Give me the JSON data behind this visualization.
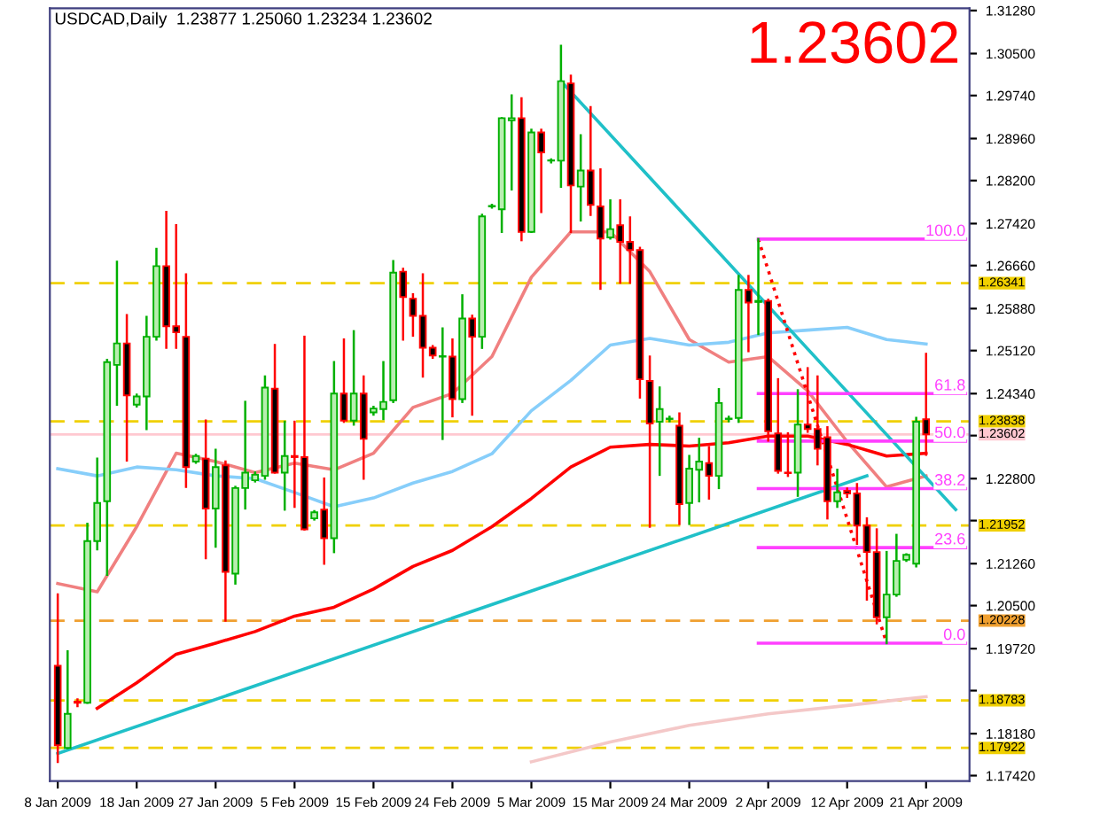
{
  "chart_data": {
    "type": "candlestick",
    "title": "USDCAD,Daily  1.23877 1.25060 1.23234 1.23602",
    "annotations": [
      "1.23602"
    ],
    "categories": [
      "8 Jan 2009",
      null,
      null,
      null,
      null,
      null,
      null,
      null,
      "18 Jan 2009",
      null,
      null,
      null,
      null,
      null,
      null,
      null,
      "27 Jan 2009",
      null,
      null,
      null,
      null,
      null,
      null,
      null,
      "5 Feb 2009",
      null,
      null,
      null,
      null,
      null,
      null,
      null,
      "15 Feb 2009",
      null,
      null,
      null,
      null,
      null,
      null,
      null,
      "24 Feb 2009",
      null,
      null,
      null,
      null,
      null,
      null,
      null,
      "5 Mar 2009",
      null,
      null,
      null,
      null,
      null,
      null,
      null,
      "15 Mar 2009",
      null,
      null,
      null,
      null,
      null,
      null,
      null,
      "24 Mar 2009",
      null,
      null,
      null,
      null,
      null,
      null,
      null,
      "2 Apr 2009",
      null,
      null,
      null,
      null,
      null,
      null,
      null,
      "12 Apr 2009",
      null,
      null,
      null,
      null,
      null,
      null,
      null,
      "21 Apr 2009",
      null,
      null,
      null,
      null
    ],
    "ohlc": [
      [
        1.1941,
        1.207,
        1.1767,
        1.1797
      ],
      [
        1.1792,
        1.1967,
        1.1792,
        1.1854
      ],
      [
        1.1876,
        1.188,
        1.1868,
        1.1874
      ],
      [
        1.1874,
        1.2198,
        1.1874,
        1.2167
      ],
      [
        1.2167,
        1.2316,
        1.2152,
        1.2236
      ],
      [
        1.2239,
        1.2495,
        1.2106,
        1.2491
      ],
      [
        1.2486,
        1.2673,
        1.2414,
        1.2525
      ],
      [
        1.2525,
        1.2576,
        1.2313,
        1.2431
      ],
      [
        1.2414,
        1.2432,
        1.2411,
        1.2429
      ],
      [
        1.2429,
        1.2573,
        1.237,
        1.2537
      ],
      [
        1.2537,
        1.2696,
        1.2532,
        1.2665
      ],
      [
        1.2665,
        1.2763,
        1.2517,
        1.2556
      ],
      [
        1.2556,
        1.2739,
        1.2517,
        1.2545
      ],
      [
        1.2537,
        1.265,
        1.2265,
        1.2301
      ],
      [
        1.2311,
        1.2323,
        1.2309,
        1.2321
      ],
      [
        1.2316,
        1.2385,
        1.2136,
        1.2226
      ],
      [
        1.2226,
        1.2332,
        1.2157,
        1.2301
      ],
      [
        1.2304,
        1.2311,
        1.2023,
        1.2111
      ],
      [
        1.2108,
        1.2265,
        1.209,
        1.2263
      ],
      [
        1.2263,
        1.2419,
        1.2226,
        1.2291
      ],
      [
        1.2277,
        1.2291,
        1.2275,
        1.2287
      ],
      [
        1.2285,
        1.2465,
        1.228,
        1.2445
      ],
      [
        1.2443,
        1.2522,
        1.2291,
        1.2291
      ],
      [
        1.2291,
        1.2383,
        1.2224,
        1.2321
      ],
      [
        1.2321,
        1.2383,
        1.2229,
        1.2319
      ],
      [
        1.2319,
        1.2537,
        1.2188,
        1.2188
      ],
      [
        1.2208,
        1.2221,
        1.2206,
        1.2219
      ],
      [
        1.2224,
        1.228,
        1.2126,
        1.2172
      ],
      [
        1.2172,
        1.2491,
        1.2147,
        1.2434
      ],
      [
        1.2434,
        1.2532,
        1.2383,
        1.2385
      ],
      [
        1.2385,
        1.2547,
        1.2378,
        1.2434
      ],
      [
        1.2434,
        1.2465,
        1.228,
        1.2352
      ],
      [
        1.24,
        1.241,
        1.2396,
        1.2407
      ],
      [
        1.2406,
        1.2491,
        1.2388,
        1.2419
      ],
      [
        1.2422,
        1.2674,
        1.2419,
        1.2653
      ],
      [
        1.2655,
        1.266,
        1.2532,
        1.2609
      ],
      [
        1.2606,
        1.2614,
        1.2539,
        1.2575
      ],
      [
        1.2575,
        1.265,
        1.2465,
        1.2517
      ],
      [
        1.2517,
        1.252,
        1.2499,
        1.2503
      ],
      [
        1.2501,
        1.2552,
        1.2352,
        1.2501
      ],
      [
        1.2501,
        1.2532,
        1.2393,
        1.2424
      ],
      [
        1.2424,
        1.2612,
        1.2419,
        1.257
      ],
      [
        1.257,
        1.2575,
        1.2396,
        1.2537
      ],
      [
        1.2537,
        1.2758,
        1.2517,
        1.2755
      ],
      [
        1.2773,
        1.2776,
        1.2771,
        1.2773
      ],
      [
        1.2768,
        1.2933,
        1.2727,
        1.2933
      ],
      [
        1.2929,
        1.2974,
        1.2804,
        1.2933
      ],
      [
        1.2933,
        1.2969,
        1.2712,
        1.2727
      ],
      [
        1.2727,
        1.2912,
        1.2727,
        1.2907
      ],
      [
        1.2907,
        1.2912,
        1.2763,
        1.2871
      ],
      [
        1.2856,
        1.2858,
        1.2853,
        1.2856
      ],
      [
        1.2856,
        1.3064,
        1.2809,
        1.3
      ],
      [
        1.2996,
        1.301,
        1.2727,
        1.2811
      ],
      [
        1.2809,
        1.2902,
        1.2748,
        1.2838
      ],
      [
        1.2838,
        1.2953,
        1.2758,
        1.2776
      ],
      [
        1.2773,
        1.284,
        1.2624,
        1.2715
      ],
      [
        1.2717,
        1.2784,
        1.2715,
        1.2732
      ],
      [
        1.2739,
        1.2784,
        1.2635,
        1.2709
      ],
      [
        1.2709,
        1.2753,
        1.2635,
        1.2694
      ],
      [
        1.2694,
        1.2698,
        1.2427,
        1.246
      ],
      [
        1.2457,
        1.2501,
        1.2193,
        1.238
      ],
      [
        1.2383,
        1.2445,
        1.2287,
        1.2406
      ],
      [
        1.2388,
        1.2392,
        1.2384,
        1.2388
      ],
      [
        1.2376,
        1.2398,
        1.2198,
        1.2234
      ],
      [
        1.2236,
        1.2321,
        1.2198,
        1.2298
      ],
      [
        1.2296,
        1.2352,
        1.2239,
        1.2311
      ],
      [
        1.2308,
        1.2337,
        1.2244,
        1.2285
      ],
      [
        1.2285,
        1.2442,
        1.2263,
        1.2417
      ],
      [
        1.2388,
        1.2392,
        1.2384,
        1.2388
      ],
      [
        1.239,
        1.2647,
        1.2383,
        1.2622
      ],
      [
        1.2622,
        1.2647,
        1.2511,
        1.2599
      ],
      [
        1.26,
        1.2714,
        1.2542,
        1.2602
      ],
      [
        1.2602,
        1.2604,
        1.2349,
        1.2366
      ],
      [
        1.2362,
        1.246,
        1.2291,
        1.2294
      ],
      [
        1.2291,
        1.2362,
        1.2285,
        1.229
      ],
      [
        1.2291,
        1.244,
        1.2249,
        1.2378
      ],
      [
        1.2378,
        1.248,
        1.2365,
        1.237
      ],
      [
        1.237,
        1.2465,
        1.2306,
        1.2334
      ],
      [
        1.2355,
        1.2373,
        1.2208,
        1.2239
      ],
      [
        1.2239,
        1.2296,
        1.2229,
        1.2255
      ],
      [
        1.2258,
        1.2262,
        1.2247,
        1.2253
      ],
      [
        1.2253,
        1.227,
        1.2162,
        1.2195
      ],
      [
        1.2195,
        1.2208,
        1.2061,
        1.2147
      ],
      [
        1.2147,
        1.2188,
        1.2018,
        1.2029
      ],
      [
        1.2029,
        1.2147,
        1.1982,
        1.207
      ],
      [
        1.207,
        1.2178,
        1.2068,
        1.2131
      ],
      [
        1.2133,
        1.2143,
        1.2131,
        1.2142
      ],
      [
        1.2126,
        1.239,
        1.2121,
        1.2383
      ],
      [
        1.23877,
        1.2506,
        1.23234,
        1.23602
      ],
      null,
      null,
      null,
      null
    ],
    "series": [
      {
        "type": "line",
        "color": "#f08080",
        "values": [
          1.209,
          null,
          null,
          null,
          1.2075,
          null,
          null,
          null,
          1.2193,
          null,
          null,
          null,
          1.2326,
          null,
          null,
          null,
          1.2311,
          null,
          null,
          null,
          1.2291,
          null,
          null,
          null,
          1.2308,
          null,
          null,
          null,
          1.2296,
          null,
          null,
          null,
          1.2326,
          null,
          null,
          null,
          1.2409,
          null,
          null,
          null,
          1.2434,
          null,
          null,
          null,
          1.2501,
          null,
          null,
          null,
          1.2645,
          null,
          null,
          null,
          1.2727,
          null,
          null,
          null,
          1.2727,
          null,
          null,
          null,
          1.2655,
          null,
          null,
          null,
          1.2532,
          null,
          null,
          null,
          1.2491,
          null,
          null,
          null,
          1.2501,
          null,
          null,
          null,
          1.2439,
          null,
          null,
          null,
          1.2347,
          null,
          null,
          null,
          1.2265,
          null,
          null,
          null,
          1.2285,
          null,
          null,
          null,
          null
        ]
      },
      {
        "type": "line",
        "color": "#87cefa",
        "values": [
          1.2298,
          null,
          null,
          null,
          1.2285,
          null,
          null,
          null,
          1.2301,
          null,
          null,
          null,
          1.2296,
          null,
          null,
          null,
          1.2285,
          null,
          null,
          null,
          1.228,
          null,
          null,
          null,
          1.2255,
          null,
          null,
          null,
          1.2229,
          null,
          null,
          null,
          1.2245,
          null,
          null,
          null,
          1.2272,
          null,
          null,
          null,
          1.2293,
          null,
          null,
          null,
          1.2325,
          null,
          null,
          null,
          1.2403,
          null,
          null,
          null,
          1.2458,
          null,
          null,
          null,
          1.2522,
          null,
          null,
          null,
          1.2534,
          null,
          null,
          null,
          1.2522,
          null,
          null,
          null,
          1.2527,
          null,
          null,
          null,
          1.2544,
          null,
          null,
          null,
          1.2549,
          null,
          null,
          null,
          1.2554,
          null,
          null,
          null,
          1.2532,
          null,
          null,
          null,
          1.2524,
          null,
          null,
          null,
          null
        ]
      },
      {
        "type": "line",
        "color": "#ff0000",
        "values": [
          null,
          null,
          null,
          null,
          1.1864,
          null,
          null,
          null,
          1.191,
          null,
          null,
          null,
          1.1962,
          null,
          null,
          null,
          1.1982,
          null,
          null,
          null,
          1.2003,
          null,
          null,
          null,
          1.2031,
          null,
          null,
          null,
          1.2047,
          null,
          null,
          null,
          1.208,
          null,
          null,
          null,
          1.2121,
          null,
          null,
          null,
          1.215,
          null,
          null,
          null,
          1.2193,
          null,
          null,
          null,
          1.2244,
          null,
          null,
          null,
          1.2301,
          null,
          null,
          null,
          1.2337,
          null,
          null,
          null,
          1.2342,
          null,
          null,
          null,
          1.2339,
          null,
          null,
          null,
          1.2345,
          null,
          null,
          null,
          1.2357,
          null,
          null,
          null,
          1.2357,
          null,
          null,
          null,
          1.2342,
          null,
          null,
          null,
          1.2321,
          null,
          null,
          null,
          1.2326,
          null,
          null,
          null,
          null
        ]
      },
      {
        "type": "line",
        "color": "#f4c8c8",
        "values": [
          null,
          null,
          null,
          null,
          null,
          null,
          null,
          null,
          null,
          null,
          null,
          null,
          null,
          null,
          null,
          null,
          null,
          null,
          null,
          null,
          null,
          null,
          null,
          null,
          null,
          null,
          null,
          null,
          null,
          null,
          null,
          null,
          null,
          null,
          null,
          null,
          null,
          null,
          null,
          null,
          null,
          null,
          null,
          null,
          null,
          null,
          null,
          null,
          1.1767,
          null,
          null,
          null,
          null,
          null,
          null,
          null,
          1.1803,
          null,
          null,
          null,
          null,
          null,
          null,
          null,
          1.1833,
          null,
          null,
          null,
          null,
          null,
          null,
          null,
          1.1854,
          null,
          null,
          null,
          null,
          null,
          null,
          null,
          1.1869,
          null,
          null,
          null,
          null,
          null,
          null,
          null,
          1.1885,
          null,
          null,
          null,
          null
        ]
      },
      {
        "type": "line",
        "color": "#20c0c8",
        "values": [
          1.1782,
          null,
          null,
          null,
          null,
          null,
          null,
          null,
          null,
          null,
          null,
          null,
          null,
          null,
          null,
          null,
          null,
          null,
          null,
          null,
          null,
          null,
          null,
          null,
          null,
          null,
          null,
          null,
          null,
          null,
          null,
          null,
          null,
          null,
          null,
          null,
          null,
          null,
          null,
          null,
          null,
          null,
          null,
          null,
          null,
          null,
          null,
          null,
          null,
          null,
          null,
          null,
          null,
          null,
          null,
          null,
          null,
          null,
          null,
          null,
          null,
          null,
          null,
          null,
          null,
          null,
          null,
          null,
          null,
          null,
          null,
          null,
          null,
          null,
          null,
          null,
          null,
          null,
          null,
          null,
          null,
          null,
          1.2285,
          null,
          null,
          null,
          null,
          null,
          null,
          null,
          null,
          null,
          null
        ]
      },
      {
        "type": "line",
        "color": "#20c0c8",
        "values": [
          null,
          null,
          null,
          null,
          null,
          null,
          null,
          null,
          null,
          null,
          null,
          null,
          null,
          null,
          null,
          null,
          null,
          null,
          null,
          null,
          null,
          null,
          null,
          null,
          null,
          null,
          null,
          null,
          null,
          null,
          null,
          null,
          null,
          null,
          null,
          null,
          null,
          null,
          null,
          null,
          null,
          null,
          null,
          null,
          null,
          null,
          null,
          null,
          null,
          null,
          null,
          1.3,
          null,
          null,
          null,
          null,
          null,
          null,
          null,
          null,
          null,
          null,
          null,
          null,
          null,
          null,
          null,
          null,
          null,
          null,
          null,
          null,
          null,
          null,
          null,
          null,
          null,
          null,
          null,
          null,
          null,
          null,
          null,
          null,
          null,
          null,
          null,
          null,
          null,
          null,
          null,
          1.2224,
          null
        ]
      },
      {
        "type": "line",
        "color": "#ff0000",
        "line_style": "dotted",
        "values": [
          null,
          null,
          null,
          null,
          null,
          null,
          null,
          null,
          null,
          null,
          null,
          null,
          null,
          null,
          null,
          null,
          null,
          null,
          null,
          null,
          null,
          null,
          null,
          null,
          null,
          null,
          null,
          null,
          null,
          null,
          null,
          null,
          null,
          null,
          null,
          null,
          null,
          null,
          null,
          null,
          null,
          null,
          null,
          null,
          null,
          null,
          null,
          null,
          null,
          null,
          null,
          null,
          null,
          null,
          null,
          null,
          null,
          null,
          null,
          null,
          null,
          null,
          null,
          null,
          null,
          null,
          null,
          null,
          null,
          null,
          null,
          1.2714,
          null,
          null,
          null,
          null,
          null,
          null,
          null,
          null,
          null,
          null,
          null,
          null,
          1.1982,
          null,
          null,
          null,
          null,
          null,
          null,
          null,
          null
        ]
      },
      {
        "type": "line",
        "name": "100.0",
        "color": "#ff40ff",
        "values": [
          null,
          null,
          null,
          null,
          null,
          null,
          null,
          null,
          null,
          null,
          null,
          null,
          null,
          null,
          null,
          null,
          null,
          null,
          null,
          null,
          null,
          null,
          null,
          null,
          null,
          null,
          null,
          null,
          null,
          null,
          null,
          null,
          null,
          null,
          null,
          null,
          null,
          null,
          null,
          null,
          null,
          null,
          null,
          null,
          null,
          null,
          null,
          null,
          null,
          null,
          null,
          null,
          null,
          null,
          null,
          null,
          null,
          null,
          null,
          null,
          null,
          null,
          null,
          null,
          null,
          null,
          null,
          null,
          null,
          null,
          null,
          1.2714,
          null,
          null,
          null,
          null,
          null,
          null,
          null,
          null,
          null,
          null,
          null,
          null,
          null,
          null,
          null,
          null,
          null,
          null,
          null,
          null,
          1.2714
        ]
      },
      {
        "type": "line",
        "name": "61.8",
        "color": "#ff40ff",
        "values": [
          null,
          null,
          null,
          null,
          null,
          null,
          null,
          null,
          null,
          null,
          null,
          null,
          null,
          null,
          null,
          null,
          null,
          null,
          null,
          null,
          null,
          null,
          null,
          null,
          null,
          null,
          null,
          null,
          null,
          null,
          null,
          null,
          null,
          null,
          null,
          null,
          null,
          null,
          null,
          null,
          null,
          null,
          null,
          null,
          null,
          null,
          null,
          null,
          null,
          null,
          null,
          null,
          null,
          null,
          null,
          null,
          null,
          null,
          null,
          null,
          null,
          null,
          null,
          null,
          null,
          null,
          null,
          null,
          null,
          null,
          null,
          1.2434,
          null,
          null,
          null,
          null,
          null,
          null,
          null,
          null,
          null,
          null,
          null,
          null,
          null,
          null,
          null,
          null,
          null,
          null,
          null,
          null,
          1.2434
        ]
      },
      {
        "type": "line",
        "name": "50.0",
        "color": "#ff40ff",
        "values": [
          null,
          null,
          null,
          null,
          null,
          null,
          null,
          null,
          null,
          null,
          null,
          null,
          null,
          null,
          null,
          null,
          null,
          null,
          null,
          null,
          null,
          null,
          null,
          null,
          null,
          null,
          null,
          null,
          null,
          null,
          null,
          null,
          null,
          null,
          null,
          null,
          null,
          null,
          null,
          null,
          null,
          null,
          null,
          null,
          null,
          null,
          null,
          null,
          null,
          null,
          null,
          null,
          null,
          null,
          null,
          null,
          null,
          null,
          null,
          null,
          null,
          null,
          null,
          null,
          null,
          null,
          null,
          null,
          null,
          null,
          null,
          1.2348,
          null,
          null,
          null,
          null,
          null,
          null,
          null,
          null,
          null,
          null,
          null,
          null,
          null,
          null,
          null,
          null,
          null,
          null,
          null,
          null,
          1.2348
        ]
      },
      {
        "type": "line",
        "name": "38.2",
        "color": "#ff40ff",
        "values": [
          null,
          null,
          null,
          null,
          null,
          null,
          null,
          null,
          null,
          null,
          null,
          null,
          null,
          null,
          null,
          null,
          null,
          null,
          null,
          null,
          null,
          null,
          null,
          null,
          null,
          null,
          null,
          null,
          null,
          null,
          null,
          null,
          null,
          null,
          null,
          null,
          null,
          null,
          null,
          null,
          null,
          null,
          null,
          null,
          null,
          null,
          null,
          null,
          null,
          null,
          null,
          null,
          null,
          null,
          null,
          null,
          null,
          null,
          null,
          null,
          null,
          null,
          null,
          null,
          null,
          null,
          null,
          null,
          null,
          null,
          null,
          1.2262,
          null,
          null,
          null,
          null,
          null,
          null,
          null,
          null,
          null,
          null,
          null,
          null,
          null,
          null,
          null,
          null,
          null,
          null,
          null,
          null,
          1.2262
        ]
      },
      {
        "type": "line",
        "name": "23.6",
        "color": "#ff40ff",
        "values": [
          null,
          null,
          null,
          null,
          null,
          null,
          null,
          null,
          null,
          null,
          null,
          null,
          null,
          null,
          null,
          null,
          null,
          null,
          null,
          null,
          null,
          null,
          null,
          null,
          null,
          null,
          null,
          null,
          null,
          null,
          null,
          null,
          null,
          null,
          null,
          null,
          null,
          null,
          null,
          null,
          null,
          null,
          null,
          null,
          null,
          null,
          null,
          null,
          null,
          null,
          null,
          null,
          null,
          null,
          null,
          null,
          null,
          null,
          null,
          null,
          null,
          null,
          null,
          null,
          null,
          null,
          null,
          null,
          null,
          null,
          null,
          1.2155,
          null,
          null,
          null,
          null,
          null,
          null,
          null,
          null,
          null,
          null,
          null,
          null,
          null,
          null,
          null,
          null,
          null,
          null,
          null,
          null,
          1.2155
        ]
      },
      {
        "type": "line",
        "name": "0.0",
        "color": "#ff40ff",
        "values": [
          null,
          null,
          null,
          null,
          null,
          null,
          null,
          null,
          null,
          null,
          null,
          null,
          null,
          null,
          null,
          null,
          null,
          null,
          null,
          null,
          null,
          null,
          null,
          null,
          null,
          null,
          null,
          null,
          null,
          null,
          null,
          null,
          null,
          null,
          null,
          null,
          null,
          null,
          null,
          null,
          null,
          null,
          null,
          null,
          null,
          null,
          null,
          null,
          null,
          null,
          null,
          null,
          null,
          null,
          null,
          null,
          null,
          null,
          null,
          null,
          null,
          null,
          null,
          null,
          null,
          null,
          null,
          null,
          null,
          null,
          null,
          1.1982,
          null,
          null,
          null,
          null,
          null,
          null,
          null,
          null,
          null,
          null,
          null,
          null,
          null,
          null,
          null,
          null,
          null,
          null,
          null,
          null,
          1.1982
        ]
      }
    ],
    "ref_lines": [
      {
        "axis": "y",
        "value": 1.26341,
        "label": "1.26341",
        "color": "#f0d000",
        "line_style": "dashed"
      },
      {
        "axis": "y",
        "value": 1.23838,
        "label": "1.23838",
        "color": "#f0d000",
        "line_style": "dashed"
      },
      {
        "axis": "y",
        "value": 1.23602,
        "label": "1.23602",
        "color": "#ffc8d0",
        "line_style": "solid"
      },
      {
        "axis": "y",
        "value": 1.21952,
        "label": "1.21952",
        "color": "#f0d000",
        "line_style": "dashed"
      },
      {
        "axis": "y",
        "value": 1.20228,
        "label": "1.20228",
        "color": "#f0a030",
        "line_style": "dashed"
      },
      {
        "axis": "y",
        "value": 1.18783,
        "label": "1.18783",
        "color": "#f0d000",
        "line_style": "dashed"
      },
      {
        "axis": "y",
        "value": 1.17922,
        "label": "1.17922",
        "color": "#f0d000",
        "line_style": "dashed"
      }
    ],
    "ylim": [
      1.1732,
      1.3132
    ],
    "yticks": [
      {
        "value": 1.3128,
        "label": "1.31280"
      },
      {
        "value": 1.305,
        "label": "1.30500"
      },
      {
        "value": 1.2974,
        "label": "1.29740"
      },
      {
        "value": 1.2896,
        "label": "1.28960"
      },
      {
        "value": 1.282,
        "label": "1.28200"
      },
      {
        "value": 1.2742,
        "label": "1.27420"
      },
      {
        "value": 1.2666,
        "label": "1.26660"
      },
      {
        "value": 1.2588,
        "label": "1.25880"
      },
      {
        "value": 1.2512,
        "label": "1.25120"
      },
      {
        "value": 1.2434,
        "label": "1.24340"
      },
      {
        "value": 1.2358,
        "label": null
      },
      {
        "value": 1.228,
        "label": "1.22800"
      },
      {
        "value": 1.2204,
        "label": null
      },
      {
        "value": 1.2126,
        "label": "1.21260"
      },
      {
        "value": 1.205,
        "label": "1.20500"
      },
      {
        "value": 1.1972,
        "label": "1.19720"
      },
      {
        "value": 1.1896,
        "label": null
      },
      {
        "value": 1.1818,
        "label": "1.18180"
      },
      {
        "value": 1.1742,
        "label": "1.17420"
      }
    ],
    "grid": false
  }
}
